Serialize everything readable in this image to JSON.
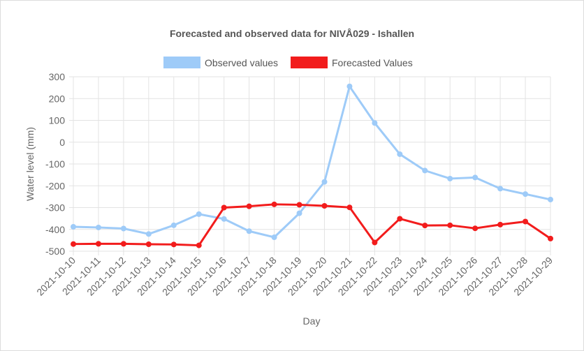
{
  "chart_data": {
    "type": "line",
    "title": "Forecasted and observed data for NIVÅ029 - Ishallen",
    "xlabel": "Day",
    "ylabel": "Water level (mm)",
    "ylim": [
      -500,
      300
    ],
    "yticks": [
      300,
      200,
      100,
      0,
      -100,
      -200,
      -300,
      -400,
      -500
    ],
    "grid": true,
    "legend": "top",
    "categories": [
      "2021-10-10",
      "2021-10-11",
      "2021-10-12",
      "2021-10-13",
      "2021-10-14",
      "2021-10-15",
      "2021-10-16",
      "2021-10-17",
      "2021-10-18",
      "2021-10-19",
      "2021-10-20",
      "2021-10-21",
      "2021-10-22",
      "2021-10-23",
      "2021-10-24",
      "2021-10-25",
      "2021-10-26",
      "2021-10-27",
      "2021-10-28",
      "2021-10-29"
    ],
    "series": [
      {
        "name": "Observed values",
        "color": "#9ecbf8",
        "values": [
          -388,
          -391,
          -396,
          -421,
          -381,
          -330,
          -352,
          -408,
          -436,
          -326,
          -182,
          256,
          88,
          -55,
          -130,
          -167,
          -162,
          -213,
          -238,
          -263
        ]
      },
      {
        "name": "Forecasted Values",
        "color": "#f21c1c",
        "values": [
          -467,
          -466,
          -466,
          -468,
          -469,
          -473,
          -300,
          -294,
          -285,
          -287,
          -292,
          -299,
          -460,
          -351,
          -382,
          -381,
          -395,
          -378,
          -364,
          -442
        ]
      }
    ]
  }
}
